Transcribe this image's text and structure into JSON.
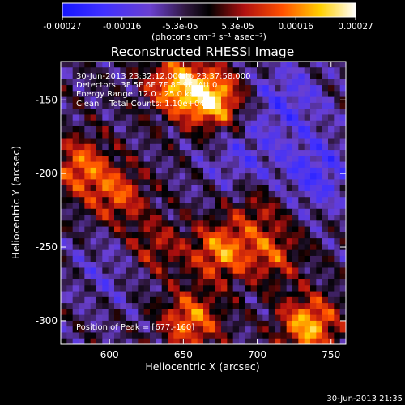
{
  "chart_data": {
    "type": "heatmap",
    "title": "Reconstructed RHESSI Image",
    "xlabel": "Heliocentric X (arcsec)",
    "ylabel": "Heliocentric Y (arcsec)",
    "xlim": [
      567,
      760
    ],
    "ylim": [
      -316,
      -124
    ],
    "xticks": [
      600,
      650,
      700,
      750
    ],
    "xtick_labels": [
      "600",
      "650",
      "700",
      "750"
    ],
    "yticks": [
      -300,
      -250,
      -200,
      -150
    ],
    "ytick_labels": [
      "-300",
      "-250",
      "-200",
      "-150"
    ],
    "colorbar": {
      "range": [
        -0.00027,
        0.00027
      ],
      "tick_values": [
        -0.00027,
        -0.00016,
        -5.3e-05,
        5.3e-05,
        0.00016,
        0.00027
      ],
      "tick_labels": [
        "-0.00027",
        "-0.00016",
        "-5.3e-05",
        "5.3e-05",
        "0.00016",
        "0.00027"
      ],
      "unit_label": "(photons cm⁻² s⁻¹ asec⁻²)"
    },
    "annotations": {
      "time_range": "30-Jun-2013 23:32:12.000 to 23:37:58.000",
      "detectors": "Detectors: 3F 5F 6F 7F 8F 9F, Att 0",
      "energy_range": "Energy Range: 12.0 - 25.0 keV",
      "method": "Clean    Total Counts: 1.10e+04",
      "peak": "Position of Peak = [677,-160]"
    },
    "peak": {
      "x": 677,
      "y": -160
    },
    "bright_regions": [
      {
        "x": 670,
        "y": -150,
        "intensity": 0.00027
      },
      {
        "x": 645,
        "y": -140,
        "intensity": 0.00022
      },
      {
        "x": 580,
        "y": -195,
        "intensity": 0.00018
      },
      {
        "x": 605,
        "y": -215,
        "intensity": 0.00016
      },
      {
        "x": 675,
        "y": -253,
        "intensity": 0.0002
      },
      {
        "x": 710,
        "y": -255,
        "intensity": 0.00014
      },
      {
        "x": 655,
        "y": -300,
        "intensity": 0.0002
      },
      {
        "x": 735,
        "y": -303,
        "intensity": 0.00024
      },
      {
        "x": 630,
        "y": -250,
        "intensity": 0.00012
      },
      {
        "x": 700,
        "y": -225,
        "intensity": 0.0001
      }
    ],
    "dark_regions": [
      {
        "x": 720,
        "y": -150,
        "intensity": -0.0001
      },
      {
        "x": 740,
        "y": -200,
        "intensity": -0.00012
      },
      {
        "x": 690,
        "y": -190,
        "intensity": -8e-05
      },
      {
        "x": 600,
        "y": -265,
        "intensity": -6e-05
      }
    ],
    "grid": false,
    "colormap": "blue-purple-black-red-yellow-white"
  },
  "footer": {
    "timestamp": "30-Jun-2013 21:35"
  }
}
